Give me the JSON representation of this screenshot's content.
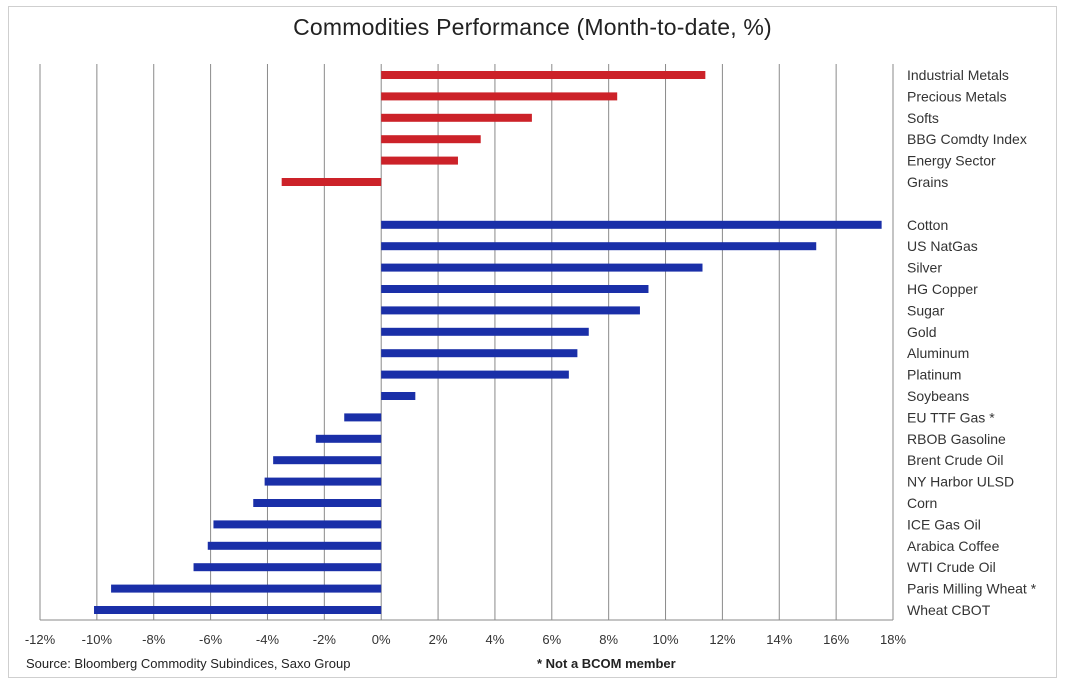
{
  "chart_data": {
    "type": "bar",
    "orientation": "horizontal",
    "title": "Commodities Performance (Month-to-date, %)",
    "xlim": [
      -12,
      18
    ],
    "x_ticks": [
      "-12%",
      "-10%",
      "-8%",
      "-6%",
      "-4%",
      "-2%",
      "0%",
      "2%",
      "4%",
      "6%",
      "8%",
      "10%",
      "12%",
      "14%",
      "16%",
      "18%"
    ],
    "grid": true,
    "category_label_position": "right",
    "groups": [
      {
        "color": "#cc2229",
        "categories": [
          "Industrial Metals",
          "Precious Metals",
          "Softs",
          "BBG Comdty Index",
          "Energy Sector",
          "Grains"
        ],
        "values": [
          11.4,
          8.3,
          5.3,
          3.5,
          2.7,
          -3.5
        ]
      },
      {
        "color": "#1a2fa8",
        "categories": [
          "Cotton",
          "US NatGas",
          "Silver",
          "HG Copper",
          "Sugar",
          "Gold",
          "Aluminum",
          "Platinum",
          "Soybeans",
          "EU TTF Gas *",
          "RBOB Gasoline",
          "Brent Crude Oil",
          "NY Harbor ULSD",
          "Corn",
          "ICE Gas Oil",
          "Arabica Coffee",
          "WTI Crude Oil",
          "Paris Milling Wheat *",
          "Wheat CBOT"
        ],
        "values": [
          17.6,
          15.3,
          11.3,
          9.4,
          9.1,
          7.3,
          6.9,
          6.6,
          1.2,
          -1.3,
          -2.3,
          -3.8,
          -4.1,
          -4.5,
          -5.9,
          -6.1,
          -6.6,
          -9.5,
          -10.1
        ]
      }
    ]
  },
  "footer": {
    "source": "Source: Bloomberg Commodity Subindices, Saxo Group",
    "note": "* Not a BCOM member"
  }
}
